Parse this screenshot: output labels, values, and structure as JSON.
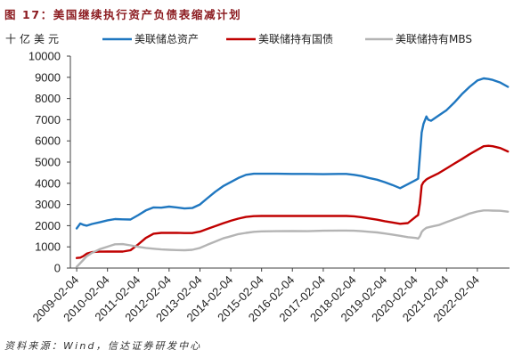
{
  "source": "资料来源：Wind，信达证券研发中心",
  "chart_data": {
    "type": "line",
    "title": "图 17：美国继续执行资产负债表缩减计划",
    "ylabel": "十亿美元",
    "ylim": [
      0,
      10000
    ],
    "y_ticks": [
      0,
      1000,
      2000,
      3000,
      4000,
      5000,
      6000,
      7000,
      8000,
      9000,
      10000
    ],
    "xlim": [
      "2008-11-21",
      "2023-02-20"
    ],
    "x_ticks": [
      "2009-02-04",
      "2010-02-04",
      "2011-02-04",
      "2012-02-04",
      "2013-02-04",
      "2014-02-04",
      "2015-02-04",
      "2016-02-04",
      "2017-02-04",
      "2018-02-04",
      "2019-02-04",
      "2020-02-04",
      "2021-02-04",
      "2022-02-04"
    ],
    "legend": "top",
    "grid": false,
    "x": [
      "2009-02-04",
      "2009-03-18",
      "2009-04-22",
      "2009-06-03",
      "2009-08-04",
      "2009-11-04",
      "2010-02-04",
      "2010-05-04",
      "2010-08-04",
      "2010-11-04",
      "2011-02-04",
      "2011-05-04",
      "2011-08-04",
      "2011-11-04",
      "2012-02-04",
      "2012-05-04",
      "2012-08-04",
      "2012-11-04",
      "2013-02-04",
      "2013-05-04",
      "2013-08-04",
      "2013-11-04",
      "2014-02-04",
      "2014-05-04",
      "2014-08-04",
      "2014-11-04",
      "2015-02-04",
      "2015-08-04",
      "2016-02-04",
      "2016-08-04",
      "2017-02-04",
      "2017-08-04",
      "2017-11-04",
      "2018-02-04",
      "2018-05-04",
      "2018-08-04",
      "2018-11-04",
      "2019-02-04",
      "2019-05-04",
      "2019-08-04",
      "2019-11-04",
      "2020-02-04",
      "2020-03-04",
      "2020-03-25",
      "2020-04-15",
      "2020-05-06",
      "2020-06-10",
      "2020-07-01",
      "2020-08-04",
      "2020-11-04",
      "2021-02-04",
      "2021-05-04",
      "2021-08-04",
      "2021-11-04",
      "2022-02-04",
      "2022-04-20",
      "2022-06-15",
      "2022-08-04",
      "2022-11-04",
      "2023-02-01"
    ],
    "series": [
      {
        "name": "美联储总资产",
        "color": "#1f77c0",
        "values": [
          1870,
          2100,
          2040,
          2000,
          2080,
          2160,
          2250,
          2310,
          2300,
          2290,
          2500,
          2720,
          2860,
          2850,
          2900,
          2860,
          2810,
          2830,
          3000,
          3300,
          3600,
          3860,
          4060,
          4250,
          4400,
          4450,
          4450,
          4450,
          4440,
          4440,
          4430,
          4440,
          4440,
          4400,
          4340,
          4250,
          4170,
          4050,
          3920,
          3770,
          3960,
          4150,
          4220,
          5300,
          6400,
          6800,
          7150,
          7000,
          6950,
          7200,
          7450,
          7800,
          8200,
          8550,
          8850,
          8950,
          8920,
          8880,
          8750,
          8550
        ]
      },
      {
        "name": "美联储持有国债",
        "color": "#c00000",
        "values": [
          475,
          490,
          560,
          680,
          750,
          775,
          776,
          777,
          777,
          840,
          1120,
          1420,
          1620,
          1660,
          1660,
          1665,
          1650,
          1650,
          1720,
          1850,
          1980,
          2110,
          2230,
          2330,
          2410,
          2450,
          2460,
          2460,
          2460,
          2460,
          2460,
          2460,
          2460,
          2440,
          2400,
          2340,
          2280,
          2210,
          2150,
          2090,
          2120,
          2420,
          2500,
          3050,
          3900,
          4050,
          4180,
          4230,
          4300,
          4480,
          4700,
          4920,
          5140,
          5370,
          5580,
          5750,
          5770,
          5750,
          5660,
          5500
        ]
      },
      {
        "name": "美联储持有MBS",
        "color": "#b4b4b4",
        "values": [
          60,
          230,
          380,
          560,
          720,
          890,
          1010,
          1120,
          1130,
          1070,
          1000,
          950,
          910,
          880,
          860,
          850,
          840,
          860,
          950,
          1100,
          1250,
          1400,
          1500,
          1600,
          1660,
          1710,
          1730,
          1740,
          1750,
          1740,
          1760,
          1770,
          1770,
          1760,
          1740,
          1710,
          1680,
          1630,
          1580,
          1520,
          1460,
          1420,
          1390,
          1500,
          1700,
          1800,
          1900,
          1920,
          1950,
          2030,
          2170,
          2300,
          2430,
          2570,
          2670,
          2720,
          2720,
          2710,
          2700,
          2660
        ]
      }
    ]
  }
}
